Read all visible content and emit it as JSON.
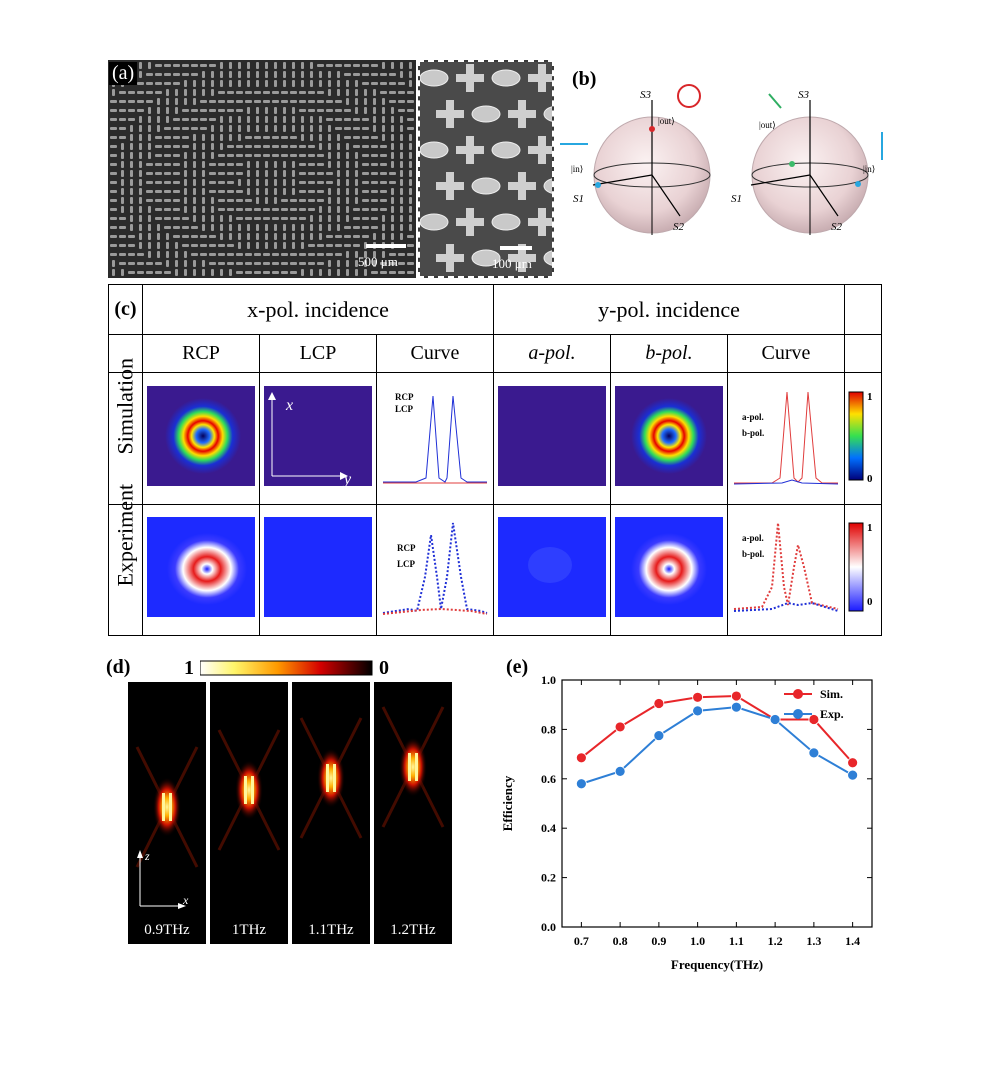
{
  "panel_a": {
    "label": "(a)",
    "scale_main": "500 μm",
    "scale_zoom": "100 μm"
  },
  "panel_b": {
    "label": "(b)",
    "axis_s1": "S1",
    "axis_s2": "S2",
    "axis_s3": "S3",
    "state_in": "|in⟩",
    "state_out": "|out⟩"
  },
  "panel_c": {
    "label": "(c)",
    "x_incidence": "x-pol. incidence",
    "y_incidence": "y-pol. incidence",
    "columns": [
      "RCP",
      "LCP",
      "Curve",
      "a-pol.",
      "b-pol.",
      "Curve"
    ],
    "rows": [
      "Simulation",
      "Experiment"
    ],
    "axis_x": "x",
    "axis_y": "y",
    "legend_x": [
      "RCP",
      "LCP"
    ],
    "legend_y": [
      "a-pol.",
      "b-pol."
    ],
    "colorbar_top": "1",
    "colorbar_bottom": "0",
    "colors": {
      "blue": "#1f2fd6",
      "red": "#e03c3c"
    }
  },
  "panel_d": {
    "label": "(d)",
    "colorbar_left": "1",
    "colorbar_right": "0",
    "axis_z": "z",
    "axis_x": "x",
    "frequencies": [
      "0.9THz",
      "1THz",
      "1.1THz",
      "1.2THz"
    ]
  },
  "chart_data": {
    "type": "line",
    "label": "(e)",
    "xlabel": "Frequency(THz)",
    "ylabel": "Efficiency",
    "xlim": [
      0.65,
      1.45
    ],
    "ylim": [
      0.0,
      1.0
    ],
    "x": [
      0.7,
      0.8,
      0.9,
      1.0,
      1.1,
      1.2,
      1.3,
      1.4
    ],
    "xticks": [
      "0.7",
      "0.8",
      "0.9",
      "1.0",
      "1.1",
      "1.2",
      "1.3",
      "1.4"
    ],
    "yticks": [
      "0.0",
      "0.2",
      "0.4",
      "0.6",
      "0.8",
      "1.0"
    ],
    "legend_position": "top-right",
    "series": [
      {
        "name": "Sim.",
        "color": "#e8262a",
        "values": [
          0.685,
          0.81,
          0.905,
          0.93,
          0.935,
          0.84,
          0.84,
          0.665
        ]
      },
      {
        "name": "Exp.",
        "color": "#2e7fd6",
        "values": [
          0.58,
          0.63,
          0.775,
          0.875,
          0.89,
          0.84,
          0.705,
          0.615
        ]
      }
    ]
  }
}
